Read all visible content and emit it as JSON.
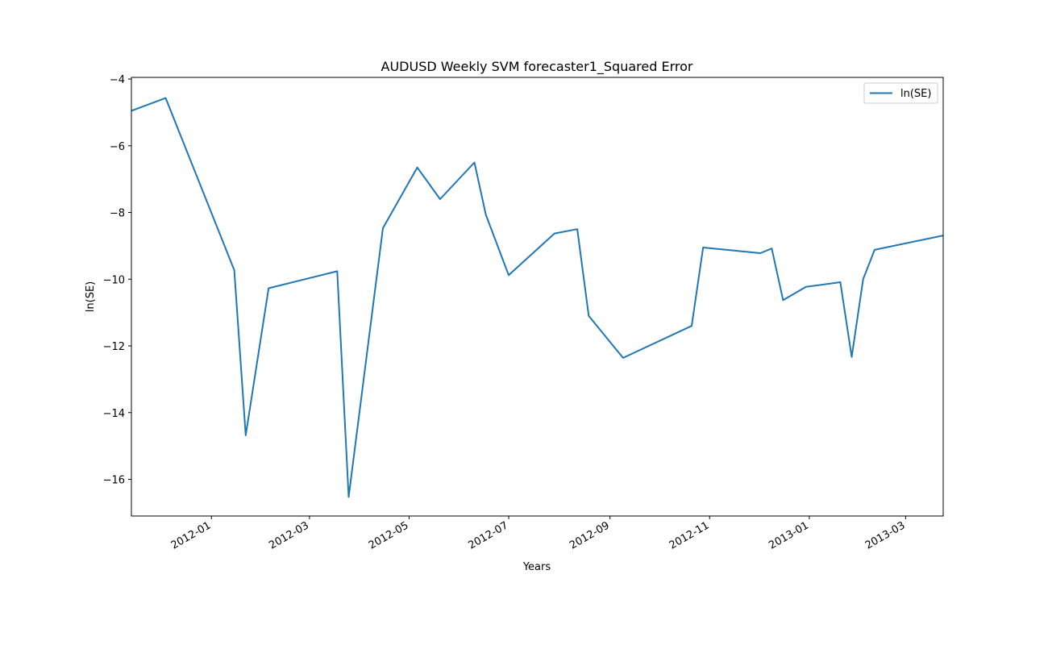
{
  "chart_data": {
    "type": "line",
    "title": "AUDUSD Weekly SVM forecaster1_Squared Error",
    "xlabel": "Years",
    "ylabel": "ln(SE)",
    "x_type": "date",
    "xlim": [
      "2011-11-13",
      "2013-03-24"
    ],
    "ylim": [
      -17.1,
      -3.95
    ],
    "yticks": [
      -4,
      -6,
      -8,
      -10,
      -12,
      -14,
      -16
    ],
    "xticks": [
      {
        "date": "2012-01-01",
        "label": "2012-01"
      },
      {
        "date": "2012-03-01",
        "label": "2012-03"
      },
      {
        "date": "2012-05-01",
        "label": "2012-05"
      },
      {
        "date": "2012-07-01",
        "label": "2012-07"
      },
      {
        "date": "2012-09-01",
        "label": "2012-09"
      },
      {
        "date": "2012-11-01",
        "label": "2012-11"
      },
      {
        "date": "2013-01-01",
        "label": "2013-01"
      },
      {
        "date": "2013-03-01",
        "label": "2013-03"
      }
    ],
    "legend": {
      "position": "top-right",
      "entries": [
        "ln(SE)"
      ]
    },
    "grid": false,
    "series": [
      {
        "name": "ln(SE)",
        "color": "#1f77b4",
        "points": [
          {
            "x": "2011-11-13",
            "y": -4.95
          },
          {
            "x": "2011-12-04",
            "y": -4.57
          },
          {
            "x": "2012-01-15",
            "y": -9.73
          },
          {
            "x": "2012-01-22",
            "y": -14.68
          },
          {
            "x": "2012-02-05",
            "y": -10.27
          },
          {
            "x": "2012-03-18",
            "y": -9.76
          },
          {
            "x": "2012-03-25",
            "y": -16.53
          },
          {
            "x": "2012-04-15",
            "y": -8.47
          },
          {
            "x": "2012-05-06",
            "y": -6.65
          },
          {
            "x": "2012-05-20",
            "y": -7.6
          },
          {
            "x": "2012-06-10",
            "y": -6.5
          },
          {
            "x": "2012-06-17",
            "y": -8.07
          },
          {
            "x": "2012-07-01",
            "y": -9.88
          },
          {
            "x": "2012-07-29",
            "y": -8.63
          },
          {
            "x": "2012-08-12",
            "y": -8.5
          },
          {
            "x": "2012-08-19",
            "y": -11.1
          },
          {
            "x": "2012-09-09",
            "y": -12.36
          },
          {
            "x": "2012-10-21",
            "y": -11.4
          },
          {
            "x": "2012-10-28",
            "y": -9.05
          },
          {
            "x": "2012-12-02",
            "y": -9.22
          },
          {
            "x": "2012-12-09",
            "y": -9.08
          },
          {
            "x": "2012-12-16",
            "y": -10.63
          },
          {
            "x": "2012-12-30",
            "y": -10.23
          },
          {
            "x": "2013-01-20",
            "y": -10.09
          },
          {
            "x": "2013-01-27",
            "y": -12.33
          },
          {
            "x": "2013-02-03",
            "y": -10.0
          },
          {
            "x": "2013-02-10",
            "y": -9.12
          },
          {
            "x": "2013-03-24",
            "y": -8.69
          }
        ]
      }
    ]
  }
}
